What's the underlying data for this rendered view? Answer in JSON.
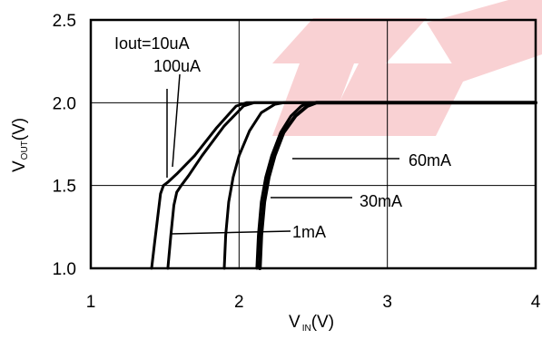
{
  "chart_data": {
    "type": "line",
    "title": "",
    "xlabel_main": "V",
    "xlabel_sub": "IN",
    "xlabel_unit": "(V)",
    "ylabel_main": "V",
    "ylabel_sub": "OUT",
    "ylabel_unit": "(V)",
    "xlim": [
      1,
      4
    ],
    "ylim": [
      1.0,
      2.5
    ],
    "xticks": [
      1,
      2,
      3,
      4
    ],
    "xtick_labels": [
      "1",
      "2",
      "3",
      "4"
    ],
    "yticks": [
      1.0,
      1.5,
      2.0,
      2.5
    ],
    "ytick_labels": [
      "1.0",
      "1.5",
      "2.0",
      "2.5"
    ],
    "grid": true,
    "series": [
      {
        "name": "Iout=10uA",
        "x": [
          1.41,
          1.43,
          1.45,
          1.47,
          1.49,
          1.52,
          1.58,
          1.7,
          1.85,
          1.98,
          2.05,
          4.0
        ],
        "y": [
          1.0,
          1.15,
          1.3,
          1.45,
          1.5,
          1.52,
          1.57,
          1.68,
          1.85,
          1.98,
          2.0,
          2.0
        ]
      },
      {
        "name": "100uA",
        "x": [
          1.52,
          1.54,
          1.56,
          1.58,
          1.61,
          1.66,
          1.75,
          1.9,
          2.03,
          2.1,
          4.0
        ],
        "y": [
          1.0,
          1.2,
          1.38,
          1.46,
          1.5,
          1.56,
          1.68,
          1.86,
          1.98,
          2.0,
          2.0
        ]
      },
      {
        "name": "1mA",
        "x": [
          1.9,
          1.91,
          1.93,
          1.96,
          2.0,
          2.07,
          2.15,
          2.24,
          2.3,
          4.0
        ],
        "y": [
          1.0,
          1.2,
          1.4,
          1.55,
          1.68,
          1.83,
          1.94,
          1.99,
          2.0,
          2.0
        ]
      },
      {
        "name": "30mA",
        "x": [
          2.12,
          2.13,
          2.15,
          2.18,
          2.22,
          2.28,
          2.35,
          2.42,
          2.47,
          4.0
        ],
        "y": [
          1.0,
          1.2,
          1.4,
          1.55,
          1.68,
          1.82,
          1.92,
          1.98,
          2.0,
          2.0
        ]
      },
      {
        "name": "60mA",
        "x": [
          2.14,
          2.15,
          2.17,
          2.2,
          2.24,
          2.3,
          2.38,
          2.46,
          2.52,
          4.0
        ],
        "y": [
          1.0,
          1.2,
          1.4,
          1.55,
          1.68,
          1.82,
          1.92,
          1.98,
          2.0,
          2.0
        ]
      }
    ],
    "annotations": [
      {
        "text": "Iout=10uA"
      },
      {
        "text": "100uA"
      },
      {
        "text": "1mA"
      },
      {
        "text": "30mA"
      },
      {
        "text": "60mA"
      }
    ]
  },
  "watermark": {
    "color": "#e8323c"
  }
}
